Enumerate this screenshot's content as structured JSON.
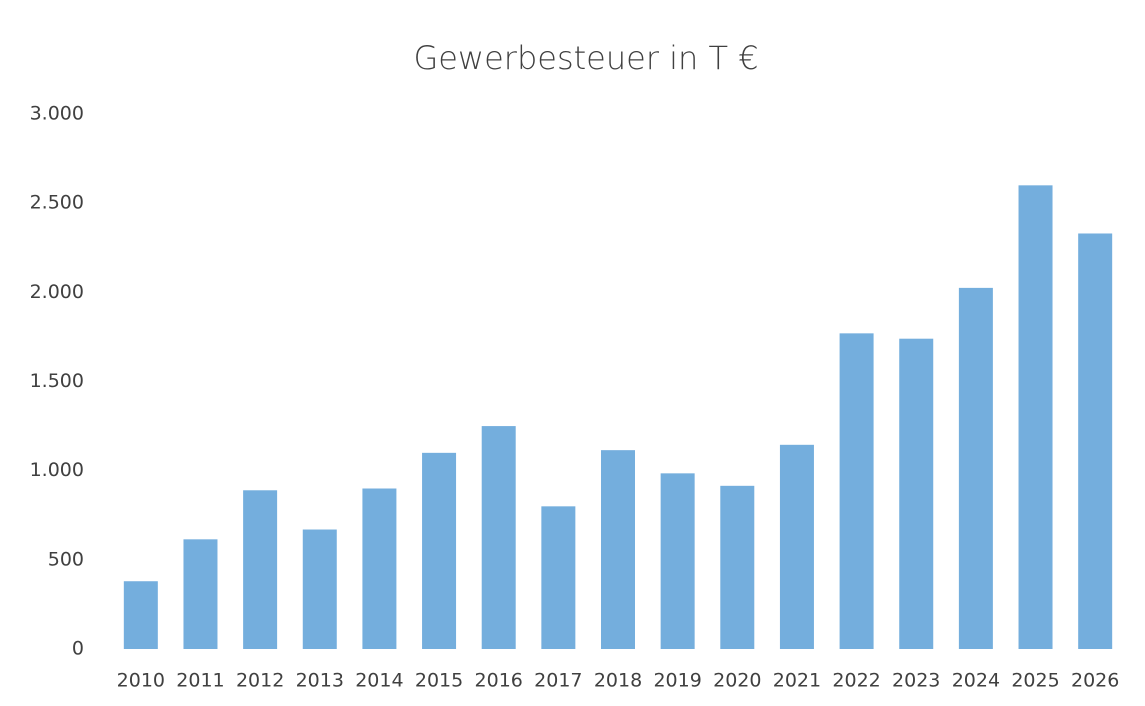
{
  "chart_data": {
    "type": "bar",
    "title": "Gewerbesteuer in T €",
    "categories": [
      "2010",
      "2011",
      "2012",
      "2013",
      "2014",
      "2015",
      "2016",
      "2017",
      "2018",
      "2019",
      "2020",
      "2021",
      "2022",
      "2023",
      "2024",
      "2025",
      "2026"
    ],
    "values": [
      380,
      615,
      890,
      670,
      900,
      1100,
      1250,
      800,
      1115,
      985,
      915,
      1145,
      1770,
      1740,
      2025,
      2600,
      2330
    ],
    "color": "#74aedd",
    "ylim": [
      0,
      3000
    ],
    "yticks": [
      0,
      500,
      {
        "value": 1000,
        "label": "1.000"
      },
      {
        "value": 1500,
        "label": "1.500"
      },
      {
        "value": 2000,
        "label": "2.000"
      },
      {
        "value": 2500,
        "label": "2.500"
      },
      {
        "value": 3000,
        "label": "3.000"
      }
    ],
    "grid": false
  }
}
